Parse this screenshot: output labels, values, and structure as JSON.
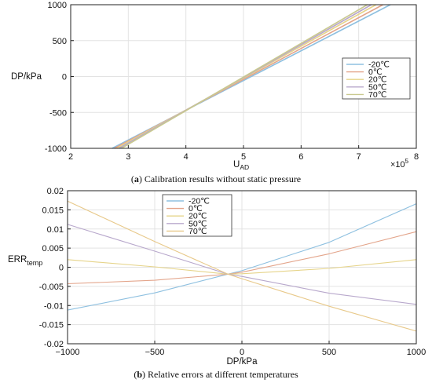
{
  "chart_data": [
    {
      "type": "line",
      "caption_prefix": "(",
      "caption_letter": "a",
      "caption_text": ") Calibration results without static pressure",
      "xlabel": "U",
      "xlabel_sub": "AD",
      "ylabel": "DP/kPa",
      "x_exponent_label": "×10",
      "x_exponent": "5",
      "xlim": [
        2,
        8
      ],
      "ylim": [
        -1000,
        1000
      ],
      "x_ticks": [
        2,
        3,
        4,
        5,
        6,
        7,
        8
      ],
      "y_ticks": [
        1000,
        500,
        0,
        -500,
        -1000
      ],
      "grid": true,
      "legend_position": "center-right",
      "series": [
        {
          "name": "-20℃",
          "color": "#8ec0e0",
          "x": [
            2.72,
            7.55
          ],
          "y": [
            -1000,
            1000
          ]
        },
        {
          "name": "0℃",
          "color": "#e3a48a",
          "x": [
            2.76,
            7.42
          ],
          "y": [
            -1000,
            1000
          ]
        },
        {
          "name": "20℃",
          "color": "#e6d48a",
          "x": [
            2.8,
            7.3
          ],
          "y": [
            -1000,
            1000
          ]
        },
        {
          "name": "50℃",
          "color": "#b8a8cc",
          "x": [
            2.84,
            7.22
          ],
          "y": [
            -1000,
            1000
          ]
        },
        {
          "name": "70℃",
          "color": "#c9c98f",
          "x": [
            2.88,
            7.15
          ],
          "y": [
            -1000,
            1000
          ]
        }
      ]
    },
    {
      "type": "line",
      "caption_prefix": "(",
      "caption_letter": "b",
      "caption_text": ") Relative errors at different temperatures",
      "xlabel": "DP/kPa",
      "ylabel": "ERR",
      "ylabel_sub": "temp",
      "xlim": [
        -1000,
        1000
      ],
      "ylim": [
        -0.02,
        0.02
      ],
      "x_ticks": [
        -1000,
        -500,
        0,
        500,
        1000
      ],
      "y_ticks": [
        0.02,
        0.015,
        0.01,
        0.005,
        0,
        -0.005,
        -0.01,
        -0.015,
        -0.02
      ],
      "grid": true,
      "legend_position": "top-center",
      "series": [
        {
          "name": "-20℃",
          "color": "#8ec0e0",
          "x": [
            -1000,
            -500,
            -80,
            0,
            500,
            1000
          ],
          "y": [
            -0.0112,
            -0.0067,
            -0.0018,
            -0.0009,
            0.0065,
            0.0166
          ]
        },
        {
          "name": "0℃",
          "color": "#e3a48a",
          "x": [
            -1000,
            -500,
            -80,
            0,
            500,
            1000
          ],
          "y": [
            -0.0043,
            -0.0034,
            -0.0018,
            -0.0013,
            0.0035,
            0.0093
          ]
        },
        {
          "name": "20℃",
          "color": "#e6d48a",
          "x": [
            -1000,
            -500,
            -80,
            0,
            500,
            1000
          ],
          "y": [
            0.002,
            0.0001,
            -0.0018,
            -0.0017,
            -0.0003,
            0.002
          ]
        },
        {
          "name": "50℃",
          "color": "#b8a8cc",
          "x": [
            -1000,
            -500,
            -80,
            0,
            500,
            1000
          ],
          "y": [
            0.0112,
            0.0042,
            -0.0018,
            -0.0024,
            -0.0068,
            -0.0097
          ]
        },
        {
          "name": "70℃",
          "color": "#e8c98a",
          "x": [
            -1000,
            -500,
            -80,
            0,
            500,
            1000
          ],
          "y": [
            0.0173,
            0.0067,
            -0.0018,
            -0.003,
            -0.0102,
            -0.0167
          ]
        }
      ]
    }
  ]
}
